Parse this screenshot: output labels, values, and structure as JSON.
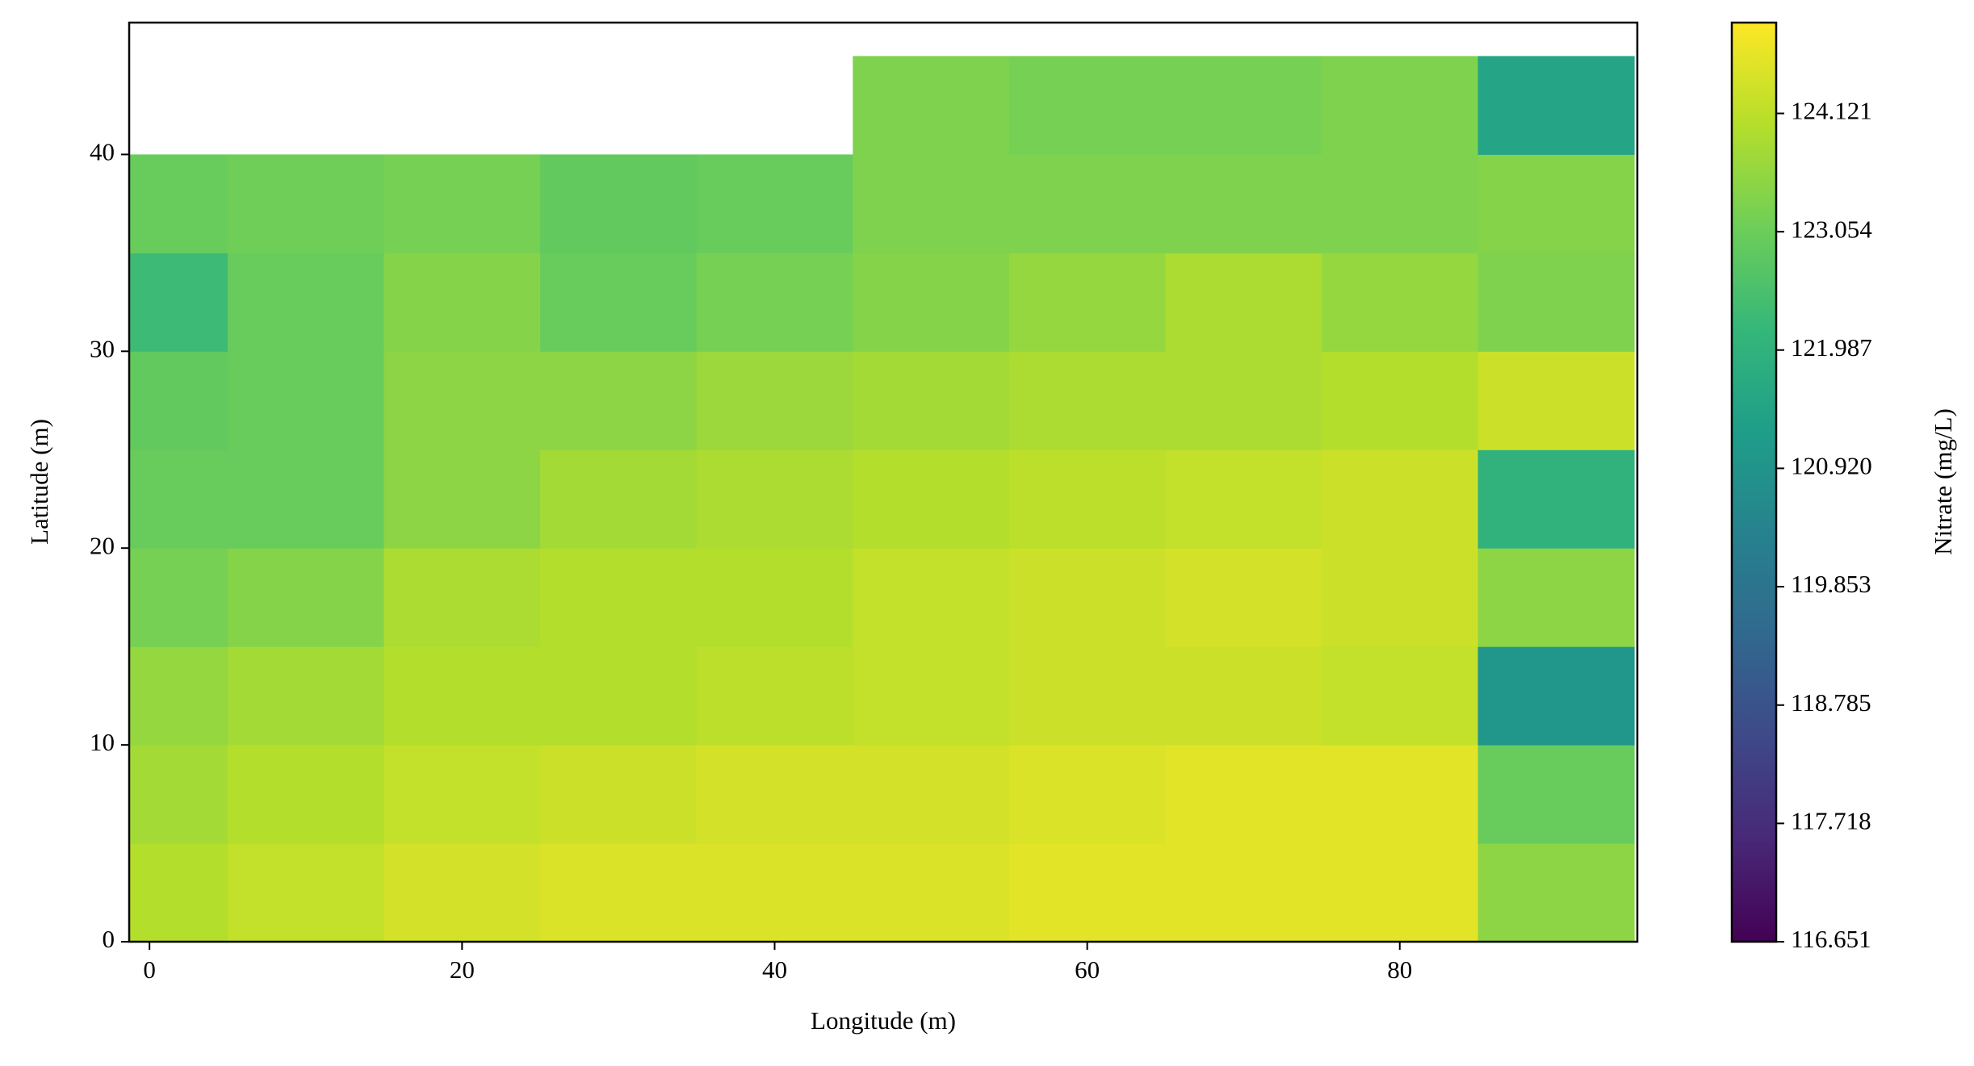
{
  "chart_data": {
    "type": "heatmap",
    "xlabel": "Longitude (m)",
    "ylabel": "Latitude (m)",
    "colorbar_label": "Nitrate (mg/L)",
    "x": [
      0,
      10,
      20,
      30,
      40,
      50,
      60,
      70,
      80,
      90
    ],
    "y": [
      2.5,
      7.5,
      12.5,
      17.5,
      22.5,
      27.5,
      32.5,
      37.5,
      42.5
    ],
    "values": [
      [
        124.0,
        124.2,
        124.4,
        124.5,
        124.5,
        124.5,
        124.6,
        124.6,
        124.6,
        123.5
      ],
      [
        123.8,
        124.0,
        124.2,
        124.3,
        124.4,
        124.4,
        124.5,
        124.6,
        124.6,
        123.0
      ],
      [
        123.6,
        123.8,
        124.0,
        124.0,
        124.1,
        124.2,
        124.3,
        124.3,
        124.2,
        121.0
      ],
      [
        123.2,
        123.4,
        123.9,
        124.0,
        124.0,
        124.2,
        124.3,
        124.4,
        124.3,
        123.5
      ],
      [
        123.0,
        123.0,
        123.5,
        123.8,
        123.9,
        124.0,
        124.1,
        124.2,
        124.3,
        122.0
      ],
      [
        122.9,
        123.0,
        123.5,
        123.5,
        123.7,
        123.8,
        123.9,
        123.9,
        124.0,
        124.3
      ],
      [
        122.3,
        123.0,
        123.4,
        123.0,
        123.2,
        123.4,
        123.6,
        123.9,
        123.6,
        123.3
      ],
      [
        123.0,
        123.1,
        123.2,
        122.9,
        123.0,
        123.3,
        123.3,
        123.3,
        123.3,
        123.4
      ],
      [
        null,
        null,
        null,
        null,
        null,
        123.3,
        123.2,
        123.2,
        123.3,
        121.5
      ]
    ],
    "xlim": [
      -1.3,
      95.2
    ],
    "ylim": [
      0,
      46.7
    ],
    "xticks": [
      0,
      20,
      40,
      60,
      80
    ],
    "yticks": [
      0,
      10,
      20,
      30,
      40
    ],
    "clim": [
      116.651,
      124.94
    ],
    "cticks": [
      116.651,
      117.718,
      118.785,
      119.853,
      {
        "value": 120.92,
        "label": "120.920"
      },
      121.987,
      123.054,
      124.121
    ],
    "colors": [
      "#440154",
      "#482878",
      "#3e4989",
      "#31688e",
      "#26828e",
      "#1f9e89",
      "#35b779",
      "#6ece58",
      "#b5de2b",
      "#fde725"
    ]
  }
}
